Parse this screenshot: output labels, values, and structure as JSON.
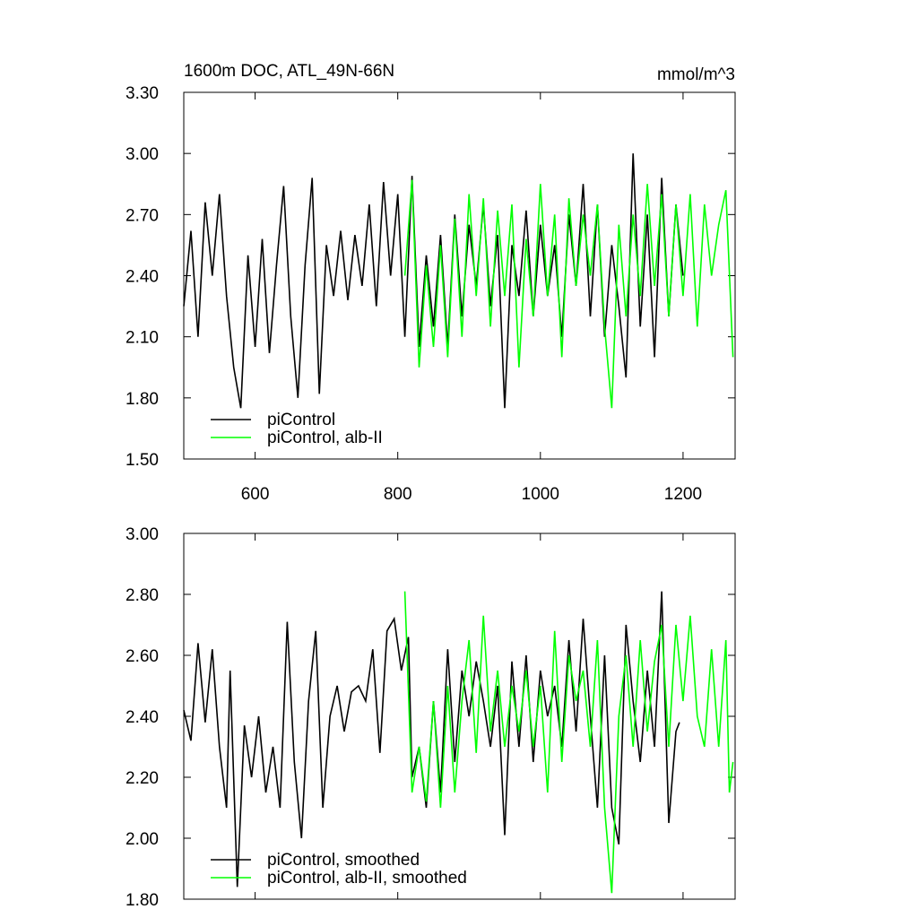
{
  "chart_data": [
    {
      "type": "line",
      "title": "1600m DOC, ATL_49N-66N",
      "units": "mmol/m^3",
      "xlim": [
        500,
        1273
      ],
      "xticks": [
        600,
        800,
        1000,
        1200
      ],
      "xtick_labels": true,
      "ylim": [
        1.5,
        3.3
      ],
      "yticks": [
        {
          "value": 1.5,
          "label": "1.50"
        },
        {
          "value": 1.8,
          "label": "1.80"
        },
        {
          "value": 2.1,
          "label": "2.10"
        },
        {
          "value": 2.4,
          "label": "2.40"
        },
        {
          "value": 2.7,
          "label": "2.70"
        },
        {
          "value": 3.0,
          "label": "3.00"
        },
        {
          "value": 3.3,
          "label": "3.30"
        }
      ],
      "legend": "lower left",
      "series": [
        {
          "name": "piControl",
          "color": "#000000",
          "x": [
            500,
            510,
            520,
            530,
            540,
            550,
            560,
            570,
            580,
            590,
            600,
            610,
            620,
            630,
            640,
            650,
            660,
            670,
            680,
            690,
            700,
            710,
            720,
            730,
            740,
            750,
            760,
            770,
            780,
            790,
            800,
            810,
            820,
            830,
            840,
            850,
            860,
            870,
            880,
            890,
            900,
            910,
            920,
            930,
            940,
            950,
            960,
            970,
            980,
            990,
            1000,
            1010,
            1020,
            1030,
            1040,
            1050,
            1060,
            1070,
            1080,
            1090,
            1100,
            1110,
            1120,
            1130,
            1140,
            1150,
            1160,
            1170,
            1180,
            1190,
            1200
          ],
          "values": [
            2.25,
            2.62,
            2.1,
            2.76,
            2.4,
            2.8,
            2.3,
            1.95,
            1.75,
            2.5,
            2.05,
            2.58,
            2.02,
            2.45,
            2.84,
            2.2,
            1.8,
            2.45,
            2.88,
            1.82,
            2.55,
            2.3,
            2.62,
            2.28,
            2.6,
            2.35,
            2.75,
            2.25,
            2.86,
            2.4,
            2.8,
            2.1,
            2.89,
            2.05,
            2.5,
            2.15,
            2.6,
            2.05,
            2.7,
            2.2,
            2.65,
            2.35,
            2.75,
            2.25,
            2.6,
            1.75,
            2.55,
            2.3,
            2.72,
            2.2,
            2.65,
            2.3,
            2.55,
            2.1,
            2.7,
            2.35,
            2.85,
            2.2,
            2.75,
            2.1,
            2.55,
            2.25,
            1.9,
            3.0,
            2.15,
            2.7,
            2.0,
            2.88,
            2.2,
            2.75,
            2.4
          ]
        },
        {
          "name": "piControl, alb-II",
          "color": "#00ff00",
          "x": [
            810,
            820,
            830,
            840,
            850,
            860,
            870,
            880,
            890,
            900,
            910,
            920,
            930,
            940,
            950,
            960,
            970,
            980,
            990,
            1000,
            1010,
            1020,
            1030,
            1040,
            1050,
            1060,
            1070,
            1080,
            1090,
            1100,
            1110,
            1120,
            1130,
            1140,
            1150,
            1160,
            1170,
            1180,
            1190,
            1200,
            1210,
            1220,
            1230,
            1240,
            1250,
            1260,
            1270
          ],
          "values": [
            2.4,
            2.87,
            1.95,
            2.45,
            2.05,
            2.55,
            2.0,
            2.68,
            2.1,
            2.8,
            2.3,
            2.78,
            2.15,
            2.72,
            2.3,
            2.75,
            1.95,
            2.58,
            2.2,
            2.85,
            2.3,
            2.7,
            2.0,
            2.78,
            2.35,
            2.7,
            2.4,
            2.75,
            2.15,
            1.75,
            2.65,
            2.2,
            2.7,
            2.3,
            2.85,
            2.35,
            2.8,
            2.2,
            2.75,
            2.3,
            2.8,
            2.15,
            2.75,
            2.4,
            2.65,
            2.82,
            2.0
          ]
        }
      ]
    },
    {
      "type": "line",
      "xlim": [
        500,
        1273
      ],
      "xticks": [
        600,
        800,
        1000,
        1200
      ],
      "xtick_labels": false,
      "ylim": [
        1.8,
        3.0
      ],
      "yticks": [
        {
          "value": 1.8,
          "label": "1.80"
        },
        {
          "value": 2.0,
          "label": "2.00"
        },
        {
          "value": 2.2,
          "label": "2.20"
        },
        {
          "value": 2.4,
          "label": "2.40"
        },
        {
          "value": 2.6,
          "label": "2.60"
        },
        {
          "value": 2.8,
          "label": "2.80"
        },
        {
          "value": 3.0,
          "label": "3.00"
        }
      ],
      "legend": "lower left",
      "series": [
        {
          "name": "piControl, smoothed",
          "color": "#000000",
          "x": [
            500,
            510,
            520,
            530,
            540,
            550,
            560,
            565,
            575,
            585,
            595,
            605,
            615,
            625,
            635,
            645,
            655,
            665,
            675,
            685,
            695,
            705,
            715,
            725,
            735,
            745,
            755,
            765,
            775,
            785,
            795,
            805,
            815,
            820,
            830,
            840,
            850,
            860,
            870,
            880,
            890,
            900,
            910,
            920,
            930,
            940,
            950,
            960,
            970,
            980,
            990,
            1000,
            1010,
            1020,
            1030,
            1040,
            1050,
            1060,
            1070,
            1080,
            1090,
            1100,
            1110,
            1120,
            1130,
            1140,
            1150,
            1160,
            1170,
            1180,
            1190,
            1195
          ],
          "values": [
            2.42,
            2.32,
            2.64,
            2.38,
            2.62,
            2.3,
            2.1,
            2.55,
            1.84,
            2.37,
            2.2,
            2.4,
            2.15,
            2.3,
            2.1,
            2.71,
            2.25,
            2.0,
            2.45,
            2.68,
            2.1,
            2.4,
            2.5,
            2.35,
            2.48,
            2.5,
            2.45,
            2.62,
            2.28,
            2.68,
            2.72,
            2.55,
            2.66,
            2.2,
            2.3,
            2.1,
            2.45,
            2.15,
            2.62,
            2.25,
            2.55,
            2.4,
            2.58,
            2.45,
            2.3,
            2.5,
            2.01,
            2.58,
            2.3,
            2.6,
            2.25,
            2.55,
            2.4,
            2.5,
            2.3,
            2.65,
            2.35,
            2.72,
            2.4,
            2.1,
            2.6,
            2.1,
            1.98,
            2.7,
            2.45,
            2.25,
            2.55,
            2.3,
            2.81,
            2.05,
            2.35,
            2.38
          ]
        },
        {
          "name": "piControl, alb-II, smoothed",
          "color": "#00ff00",
          "x": [
            810,
            820,
            830,
            840,
            850,
            860,
            870,
            880,
            890,
            900,
            910,
            920,
            930,
            940,
            950,
            960,
            970,
            980,
            990,
            1000,
            1010,
            1020,
            1030,
            1040,
            1050,
            1060,
            1070,
            1080,
            1090,
            1100,
            1110,
            1120,
            1130,
            1140,
            1150,
            1160,
            1170,
            1180,
            1190,
            1200,
            1210,
            1220,
            1230,
            1240,
            1250,
            1260,
            1265,
            1270
          ],
          "values": [
            2.81,
            2.15,
            2.3,
            2.12,
            2.45,
            2.1,
            2.5,
            2.15,
            2.45,
            2.65,
            2.28,
            2.73,
            2.35,
            2.55,
            2.3,
            2.5,
            2.35,
            2.55,
            2.3,
            2.5,
            2.15,
            2.68,
            2.25,
            2.6,
            2.45,
            2.55,
            2.3,
            2.65,
            2.1,
            1.82,
            2.4,
            2.6,
            2.3,
            2.65,
            2.35,
            2.58,
            2.7,
            2.3,
            2.7,
            2.45,
            2.73,
            2.4,
            2.3,
            2.62,
            2.3,
            2.65,
            2.15,
            2.25
          ]
        }
      ]
    }
  ]
}
